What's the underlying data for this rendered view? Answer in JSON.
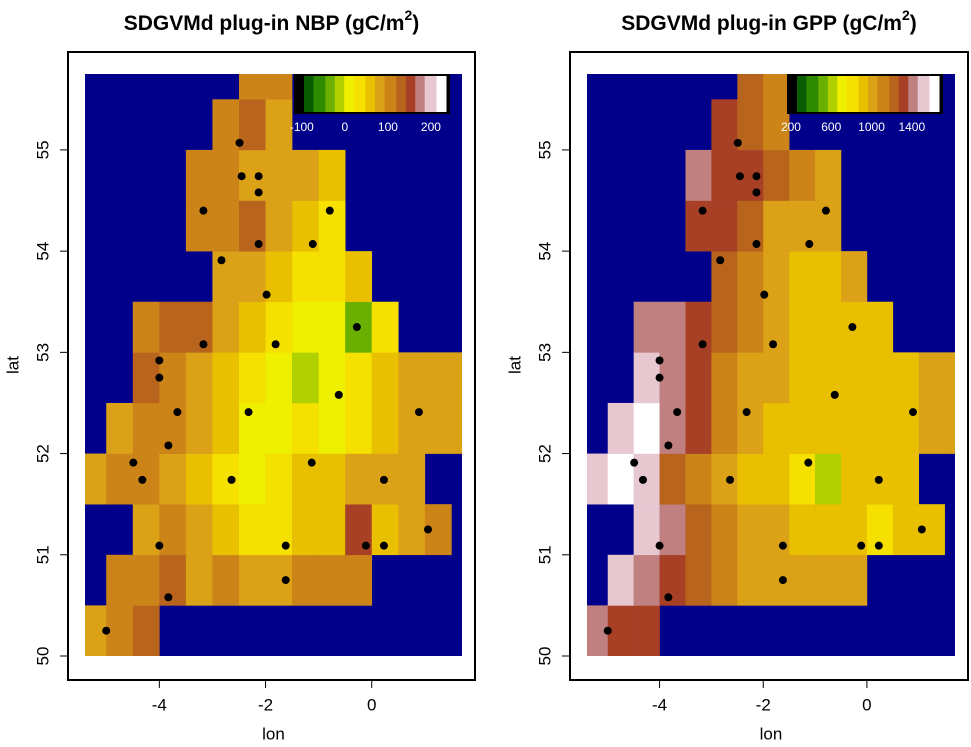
{
  "chart_data": [
    {
      "type": "heatmap",
      "title": "SDGVMd plug-in NBP (gC/m",
      "title_sup": "2",
      "title_tail": ")",
      "x_label": "lon",
      "y_label": "lat",
      "xlim": [
        -5.4,
        1.7
      ],
      "ylim": [
        50,
        55.75
      ],
      "xticks": [
        -4,
        -2,
        0
      ],
      "yticks": [
        50,
        51,
        52,
        53,
        54,
        55
      ],
      "background": "#00008b",
      "colors": [
        "#0a5c00",
        "#2e8b00",
        "#6ab000",
        "#b0d000",
        "#eef000",
        "#f5e000",
        "#e8c000",
        "#dba218",
        "#cc8418",
        "#b8641c",
        "#a84026",
        "#c08080",
        "#e8c8d0",
        "#ffffff"
      ],
      "clim": [
        -95,
        235
      ],
      "colorbar_ticks": [
        -100,
        0,
        100,
        200
      ],
      "cell": 0.5,
      "rows": [
        {
          "lat": 50.0,
          "lon": -5.5,
          "values": [
            90,
            110,
            120
          ]
        },
        {
          "lat": 50.5,
          "lon": -5.0,
          "values": [
            100,
            110,
            120,
            90,
            100,
            80,
            90,
            100,
            110,
            100
          ]
        },
        {
          "lat": 51.0,
          "lon": -4.5,
          "values": [
            90,
            100,
            80,
            60,
            40,
            30,
            50,
            60,
            150,
            60,
            80,
            100
          ]
        },
        {
          "lat": 51.5,
          "lon": -5.5,
          "values": [
            80,
            100,
            110,
            90,
            60,
            30,
            20,
            40,
            50,
            60,
            70,
            80,
            90
          ]
        },
        {
          "lat": 52.0,
          "lon": -5.0,
          "values": [
            90,
            110,
            100,
            80,
            50,
            20,
            10,
            30,
            20,
            40,
            60,
            70,
            80,
            90
          ]
        },
        {
          "lat": 52.5,
          "lon": -4.5,
          "values": [
            120,
            110,
            90,
            60,
            40,
            20,
            -20,
            10,
            30,
            50,
            70,
            80,
            90
          ]
        },
        {
          "lat": 53.0,
          "lon": -4.5,
          "values": [
            110,
            120,
            130,
            90,
            60,
            30,
            0,
            20,
            -30,
            40
          ]
        },
        {
          "lat": 53.5,
          "lon": -3.0,
          "values": [
            90,
            80,
            60,
            40,
            30,
            50
          ]
        },
        {
          "lat": 54.0,
          "lon": -3.5,
          "values": [
            100,
            110,
            120,
            90,
            60,
            30
          ]
        },
        {
          "lat": 54.5,
          "lon": -3.5,
          "values": [
            110,
            100,
            90,
            80,
            70,
            60
          ]
        },
        {
          "lat": 55.0,
          "lon": -3.0,
          "values": [
            100,
            120,
            90
          ]
        },
        {
          "lat": 55.5,
          "lon": -2.5,
          "values": [
            110,
            100
          ]
        }
      ],
      "points": {
        "lon": [
          -2.49,
          -2.45,
          -2.13,
          -2.13,
          -3.17,
          -0.79,
          -2.13,
          -1.11,
          -2.83,
          -1.98,
          -0.28,
          -3.17,
          -1.81,
          -4.0,
          -4.0,
          -0.62,
          -3.66,
          -2.32,
          0.89,
          -3.83,
          -4.49,
          -1.13,
          -4.32,
          -2.64,
          0.23,
          1.06,
          -4.0,
          -1.62,
          -0.11,
          0.23,
          -1.62,
          -3.83,
          -5.0
        ],
        "lat": [
          55.07,
          54.74,
          54.74,
          54.58,
          54.4,
          54.4,
          54.07,
          54.07,
          53.91,
          53.57,
          53.25,
          53.08,
          53.08,
          52.92,
          52.75,
          52.58,
          52.41,
          52.41,
          52.41,
          52.08,
          51.91,
          51.91,
          51.74,
          51.74,
          51.74,
          51.25,
          51.09,
          51.09,
          51.09,
          51.09,
          50.75,
          50.58,
          50.25
        ]
      }
    },
    {
      "type": "heatmap",
      "title": "SDGVMd plug-in GPP (gC/m",
      "title_sup": "2",
      "title_tail": ")",
      "x_label": "lon",
      "y_label": "lat",
      "xlim": [
        -5.4,
        1.7
      ],
      "ylim": [
        50,
        55.75
      ],
      "xticks": [
        -4,
        -2,
        0
      ],
      "yticks": [
        50,
        51,
        52,
        53,
        54,
        55
      ],
      "background": "#00008b",
      "colors": [
        "#0a5c00",
        "#2e8b00",
        "#6ab000",
        "#b0d000",
        "#eef000",
        "#f5e000",
        "#e8c000",
        "#dba218",
        "#cc8418",
        "#b8641c",
        "#a84026",
        "#c08080",
        "#e8c8d0",
        "#ffffff"
      ],
      "clim": [
        260,
        1670
      ],
      "colorbar_ticks": [
        200,
        600,
        1000,
        1400
      ],
      "cell": 0.5,
      "rows": [
        {
          "lat": 50.0,
          "lon": -5.5,
          "values": [
            1400,
            1350,
            1300
          ]
        },
        {
          "lat": 50.5,
          "lon": -5.0,
          "values": [
            1550,
            1450,
            1350,
            1200,
            1150,
            1050,
            1000,
            1000,
            1050,
            1000
          ]
        },
        {
          "lat": 51.0,
          "lon": -4.5,
          "values": [
            1500,
            1450,
            1250,
            1100,
            1050,
            1000,
            950,
            950,
            900,
            850,
            950,
            950
          ]
        },
        {
          "lat": 51.5,
          "lon": -5.5,
          "values": [
            1550,
            1600,
            1500,
            1250,
            1100,
            1000,
            950,
            900,
            850,
            600,
            900,
            950,
            950
          ]
        },
        {
          "lat": 52.0,
          "lon": -5.0,
          "values": [
            1550,
            1600,
            1450,
            1300,
            1150,
            1000,
            950,
            950,
            900,
            900,
            950,
            950,
            1000,
            1000
          ]
        },
        {
          "lat": 52.5,
          "lon": -4.5,
          "values": [
            1500,
            1450,
            1350,
            1150,
            1050,
            1000,
            900,
            900,
            900,
            950,
            950,
            1000,
            1050
          ]
        },
        {
          "lat": 53.0,
          "lon": -4.5,
          "values": [
            1450,
            1400,
            1300,
            1250,
            1100,
            1000,
            950,
            900,
            900,
            950
          ]
        },
        {
          "lat": 53.5,
          "lon": -3.0,
          "values": [
            1200,
            1100,
            1000,
            950,
            950,
            1000
          ]
        },
        {
          "lat": 54.0,
          "lon": -3.5,
          "values": [
            1350,
            1300,
            1250,
            1050,
            1000,
            1050
          ]
        },
        {
          "lat": 54.5,
          "lon": -3.5,
          "values": [
            1400,
            1350,
            1300,
            1200,
            1150,
            1050
          ]
        },
        {
          "lat": 55.0,
          "lon": -3.0,
          "values": [
            1300,
            1250,
            1150
          ]
        },
        {
          "lat": 55.5,
          "lon": -2.5,
          "values": [
            1200,
            1150
          ]
        }
      ],
      "points": {
        "lon": [
          -2.49,
          -2.45,
          -2.13,
          -2.13,
          -3.17,
          -0.79,
          -2.13,
          -1.11,
          -2.83,
          -1.98,
          -0.28,
          -3.17,
          -1.81,
          -4.0,
          -4.0,
          -0.62,
          -3.66,
          -2.32,
          0.89,
          -3.83,
          -4.49,
          -1.13,
          -4.32,
          -2.64,
          0.23,
          1.06,
          -4.0,
          -1.62,
          -0.11,
          0.23,
          -1.62,
          -3.83,
          -5.0
        ],
        "lat": [
          55.07,
          54.74,
          54.74,
          54.58,
          54.4,
          54.4,
          54.07,
          54.07,
          53.91,
          53.57,
          53.25,
          53.08,
          53.08,
          52.92,
          52.75,
          52.58,
          52.41,
          52.41,
          52.41,
          52.08,
          51.91,
          51.91,
          51.74,
          51.74,
          51.74,
          51.25,
          51.09,
          51.09,
          51.09,
          51.09,
          50.75,
          50.58,
          50.25
        ]
      }
    }
  ]
}
